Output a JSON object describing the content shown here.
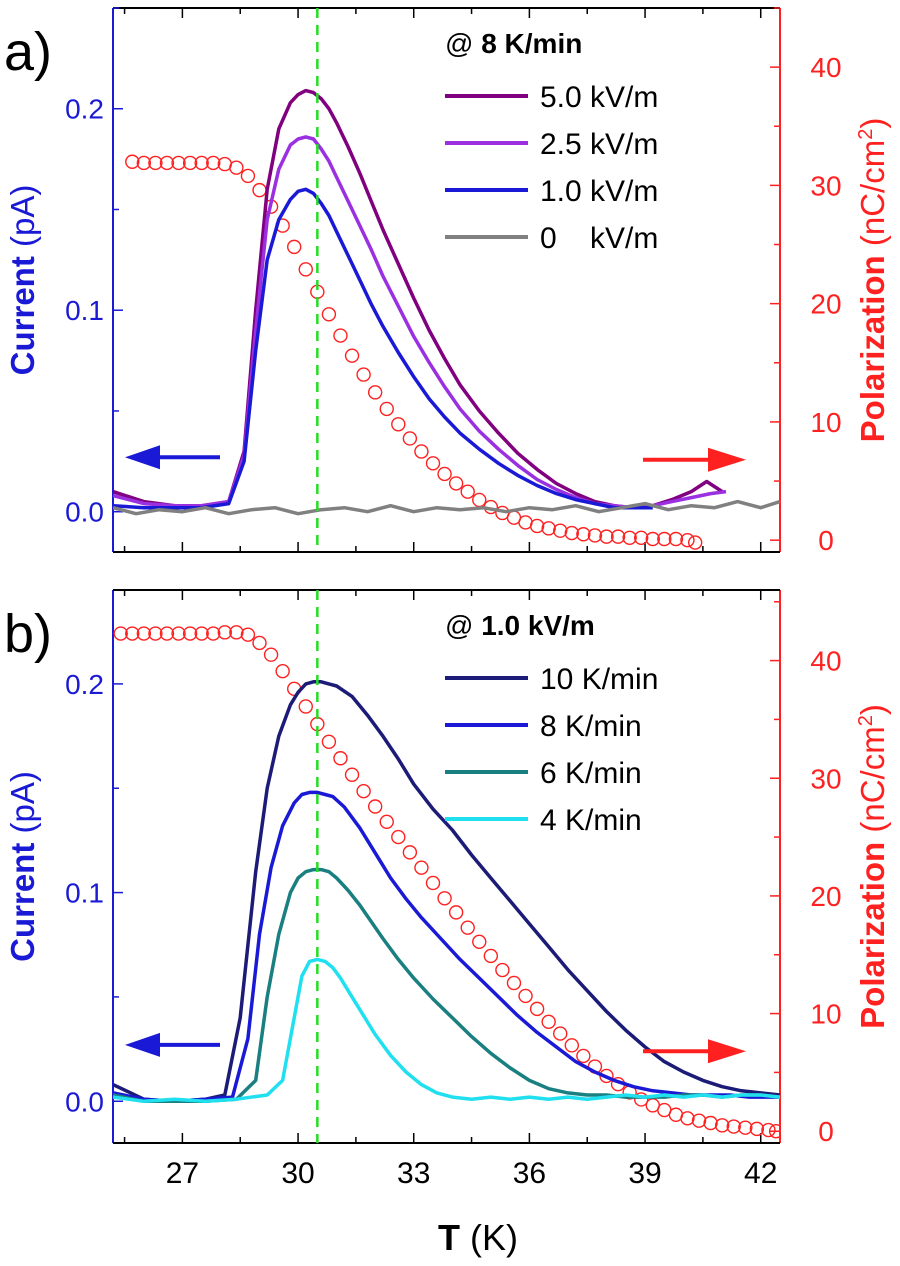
{
  "figure": {
    "xlabel_bold": "T",
    "xlabel_rest": " (K)"
  },
  "chart_data": [
    {
      "type": "line",
      "panel_label": "a)",
      "xlabel": "T (K)",
      "xticks": [
        27,
        30,
        33,
        36,
        39,
        42
      ],
      "xlim": [
        25.2,
        42.5
      ],
      "ylabel_left": {
        "bold": "Current",
        "rest": " (pA)"
      },
      "ylabel_right": {
        "bold": "Polarization",
        "rest": " (nC/cm",
        "sup": "2",
        "close": ")"
      },
      "ylim_left": [
        -0.02,
        0.25
      ],
      "yticks_left": [
        0.0,
        0.1,
        0.2
      ],
      "ytick_labels_left": [
        "0.0",
        "0.1",
        "0.2"
      ],
      "ylim_right": [
        -1,
        45
      ],
      "yticks_right": [
        0,
        10,
        20,
        30,
        40
      ],
      "ytick_labels_right": [
        "0",
        "10",
        "20",
        "30",
        "40"
      ],
      "legend_title": {
        "prefix": "@ ",
        "bold": "8 K/min"
      },
      "legend_position": "top-right",
      "vline_x": 30.5,
      "arrow_left_y": 0.027,
      "arrow_right_y": 6.8,
      "series": [
        {
          "name": "5.0 kV/m",
          "color": "#800080",
          "axis": "left",
          "x": [
            25.2,
            26.0,
            26.8,
            27.5,
            28.2,
            28.6,
            28.9,
            29.2,
            29.5,
            29.8,
            30.0,
            30.2,
            30.4,
            30.6,
            30.8,
            31.0,
            31.3,
            31.6,
            31.9,
            32.2,
            32.6,
            33.0,
            33.4,
            33.8,
            34.2,
            34.7,
            35.2,
            35.7,
            36.2,
            36.7,
            37.2,
            37.7,
            38.2,
            38.7,
            39.2,
            39.7,
            40.2,
            40.6,
            41.0
          ],
          "y": [
            0.01,
            0.005,
            0.003,
            0.003,
            0.005,
            0.03,
            0.1,
            0.16,
            0.19,
            0.203,
            0.207,
            0.209,
            0.208,
            0.205,
            0.2,
            0.193,
            0.181,
            0.168,
            0.154,
            0.14,
            0.123,
            0.106,
            0.09,
            0.076,
            0.063,
            0.05,
            0.039,
            0.029,
            0.021,
            0.014,
            0.009,
            0.005,
            0.003,
            0.002,
            0.003,
            0.006,
            0.01,
            0.015,
            0.01
          ]
        },
        {
          "name": "2.5 kV/m",
          "color": "#9a30e0",
          "axis": "left",
          "x": [
            25.2,
            26.0,
            26.8,
            27.5,
            28.2,
            28.6,
            28.9,
            29.2,
            29.5,
            29.8,
            30.0,
            30.2,
            30.4,
            30.6,
            30.8,
            31.0,
            31.3,
            31.6,
            31.9,
            32.2,
            32.6,
            33.0,
            33.4,
            33.8,
            34.2,
            34.7,
            35.2,
            35.7,
            36.2,
            36.7,
            37.2,
            37.7,
            38.2,
            38.7,
            39.2,
            39.7,
            40.2,
            40.7,
            41.1
          ],
          "y": [
            0.008,
            0.004,
            0.003,
            0.003,
            0.005,
            0.028,
            0.09,
            0.145,
            0.17,
            0.182,
            0.185,
            0.186,
            0.185,
            0.18,
            0.174,
            0.166,
            0.154,
            0.142,
            0.13,
            0.117,
            0.102,
            0.087,
            0.074,
            0.062,
            0.051,
            0.04,
            0.031,
            0.023,
            0.016,
            0.011,
            0.007,
            0.004,
            0.003,
            0.002,
            0.003,
            0.005,
            0.007,
            0.009,
            0.01
          ]
        },
        {
          "name": "1.0 kV/m",
          "color": "#1a1ad6",
          "axis": "left",
          "x": [
            25.2,
            26.0,
            26.8,
            27.5,
            28.2,
            28.6,
            28.9,
            29.2,
            29.5,
            29.8,
            30.0,
            30.2,
            30.4,
            30.6,
            30.8,
            31.0,
            31.3,
            31.6,
            31.9,
            32.2,
            32.6,
            33.0,
            33.4,
            33.8,
            34.2,
            34.7,
            35.2,
            35.7,
            36.2,
            36.7,
            37.2,
            37.7,
            38.2,
            38.7,
            39.2
          ],
          "y": [
            0.003,
            0.002,
            0.002,
            0.002,
            0.004,
            0.025,
            0.08,
            0.125,
            0.145,
            0.155,
            0.159,
            0.16,
            0.158,
            0.153,
            0.147,
            0.139,
            0.127,
            0.115,
            0.103,
            0.092,
            0.079,
            0.067,
            0.056,
            0.047,
            0.039,
            0.031,
            0.024,
            0.018,
            0.013,
            0.009,
            0.006,
            0.004,
            0.002,
            0.002,
            0.002
          ]
        },
        {
          "name": "0    kV/m",
          "color": "#808080",
          "axis": "left",
          "x": [
            25.2,
            25.8,
            26.4,
            27.0,
            27.6,
            28.2,
            28.8,
            29.4,
            30.0,
            30.6,
            31.2,
            31.8,
            32.4,
            33.0,
            33.6,
            34.2,
            34.8,
            35.4,
            36.0,
            36.6,
            37.2,
            37.8,
            38.4,
            39.0,
            39.6,
            40.2,
            40.8,
            41.4,
            42.0,
            42.5
          ],
          "y": [
            0.002,
            -0.001,
            0.001,
            0.0,
            0.002,
            -0.001,
            0.001,
            0.002,
            -0.001,
            0.001,
            0.002,
            0.0,
            0.003,
            0.0,
            0.002,
            0.001,
            0.002,
            0.0,
            0.002,
            0.001,
            0.003,
            0.0,
            0.002,
            0.004,
            0.001,
            0.003,
            0.002,
            0.005,
            0.002,
            0.005
          ]
        },
        {
          "name": "",
          "color": "#ff2020",
          "axis": "right",
          "marker": "circle",
          "x": [
            25.7,
            26.0,
            26.3,
            26.6,
            26.9,
            27.2,
            27.5,
            27.8,
            28.1,
            28.4,
            28.7,
            29.0,
            29.3,
            29.6,
            29.9,
            30.2,
            30.5,
            30.8,
            31.1,
            31.4,
            31.7,
            32.0,
            32.3,
            32.6,
            32.9,
            33.2,
            33.5,
            33.8,
            34.1,
            34.4,
            34.7,
            35.0,
            35.3,
            35.6,
            35.9,
            36.2,
            36.5,
            36.8,
            37.1,
            37.4,
            37.7,
            38.0,
            38.3,
            38.6,
            38.9,
            39.2,
            39.5,
            39.8,
            40.1,
            40.3
          ],
          "y": [
            32,
            31.9,
            31.9,
            31.9,
            31.9,
            31.9,
            31.9,
            31.9,
            31.8,
            31.5,
            30.8,
            29.6,
            28.2,
            26.6,
            24.8,
            22.9,
            21.0,
            19.1,
            17.3,
            15.6,
            14.0,
            12.5,
            11.1,
            9.8,
            8.6,
            7.5,
            6.5,
            5.6,
            4.8,
            4.1,
            3.4,
            2.8,
            2.3,
            1.9,
            1.5,
            1.2,
            1.0,
            0.8,
            0.6,
            0.5,
            0.4,
            0.3,
            0.3,
            0.2,
            0.2,
            0.1,
            0.1,
            0.1,
            0.0,
            -0.2
          ]
        }
      ]
    },
    {
      "type": "line",
      "panel_label": "b)",
      "xlabel": "T (K)",
      "xticks": [
        27,
        30,
        33,
        36,
        39,
        42
      ],
      "xlim": [
        25.2,
        42.5
      ],
      "ylabel_left": {
        "bold": "Current",
        "rest": " (pA)"
      },
      "ylabel_right": {
        "bold": "Polarization",
        "rest": " (nC/cm",
        "sup": "2",
        "close": ")"
      },
      "ylim_left": [
        -0.02,
        0.245
      ],
      "yticks_left": [
        0.0,
        0.1,
        0.2
      ],
      "ytick_labels_left": [
        "0.0",
        "0.1",
        "0.2"
      ],
      "ylim_right": [
        -1,
        46
      ],
      "yticks_right": [
        0,
        10,
        20,
        30,
        40
      ],
      "ytick_labels_right": [
        "0",
        "10",
        "20",
        "30",
        "40"
      ],
      "legend_title": {
        "prefix": "@ ",
        "bold": "1.0 kV/m"
      },
      "legend_position": "top-right",
      "vline_x": 30.5,
      "arrow_left_y": 0.027,
      "arrow_right_y": 6.8,
      "series": [
        {
          "name": "10 K/min",
          "color": "#1c1c78",
          "axis": "left",
          "x": [
            25.2,
            26.0,
            26.8,
            27.6,
            28.1,
            28.5,
            28.9,
            29.2,
            29.5,
            29.8,
            30.0,
            30.2,
            30.4,
            30.6,
            30.8,
            31.0,
            31.4,
            31.8,
            32.2,
            32.6,
            33.0,
            33.5,
            34.0,
            34.5,
            35.0,
            35.5,
            36.0,
            36.5,
            37.0,
            37.5,
            38.0,
            38.5,
            39.0,
            39.5,
            40.0,
            40.5,
            41.0,
            41.5,
            42.0,
            42.5
          ],
          "y": [
            0.008,
            0.001,
            0.0,
            0.001,
            0.003,
            0.04,
            0.11,
            0.15,
            0.175,
            0.19,
            0.196,
            0.2,
            0.201,
            0.201,
            0.2,
            0.199,
            0.194,
            0.185,
            0.175,
            0.164,
            0.152,
            0.14,
            0.13,
            0.118,
            0.107,
            0.096,
            0.085,
            0.074,
            0.063,
            0.053,
            0.043,
            0.034,
            0.026,
            0.019,
            0.014,
            0.01,
            0.007,
            0.005,
            0.004,
            0.003
          ]
        },
        {
          "name": "8 K/min",
          "color": "#1a1ad6",
          "axis": "left",
          "x": [
            25.2,
            26.0,
            26.8,
            27.6,
            28.3,
            28.7,
            29.0,
            29.3,
            29.6,
            29.9,
            30.1,
            30.3,
            30.5,
            30.7,
            30.9,
            31.2,
            31.6,
            32.0,
            32.4,
            32.8,
            33.2,
            33.7,
            34.2,
            34.7,
            35.2,
            35.7,
            36.2,
            36.7,
            37.2,
            37.7,
            38.2,
            38.7,
            39.2,
            39.7,
            40.2,
            40.7,
            41.2,
            41.7,
            42.2,
            42.5
          ],
          "y": [
            0.004,
            0.001,
            0.0,
            0.001,
            0.002,
            0.03,
            0.08,
            0.112,
            0.132,
            0.143,
            0.147,
            0.148,
            0.148,
            0.147,
            0.146,
            0.141,
            0.131,
            0.119,
            0.107,
            0.097,
            0.088,
            0.078,
            0.068,
            0.059,
            0.05,
            0.041,
            0.033,
            0.026,
            0.019,
            0.014,
            0.01,
            0.007,
            0.005,
            0.004,
            0.003,
            0.003,
            0.003,
            0.002,
            0.002,
            0.002
          ]
        },
        {
          "name": "6 K/min",
          "color": "#1a7f80",
          "axis": "left",
          "x": [
            25.2,
            26.0,
            26.8,
            27.6,
            28.4,
            28.9,
            29.2,
            29.5,
            29.8,
            30.0,
            30.2,
            30.4,
            30.6,
            30.8,
            31.0,
            31.3,
            31.6,
            31.9,
            32.2,
            32.6,
            33.0,
            33.5,
            34.0,
            34.5,
            35.0,
            35.5,
            36.0,
            36.5,
            37.0,
            37.5,
            38.0,
            38.5,
            39.0,
            39.5,
            40.0,
            40.5,
            41.0,
            41.5,
            42.0,
            42.5
          ],
          "y": [
            0.003,
            0.0,
            0.0,
            0.0,
            0.001,
            0.01,
            0.05,
            0.08,
            0.1,
            0.107,
            0.11,
            0.111,
            0.111,
            0.11,
            0.107,
            0.101,
            0.094,
            0.086,
            0.078,
            0.068,
            0.059,
            0.049,
            0.04,
            0.031,
            0.023,
            0.016,
            0.01,
            0.006,
            0.004,
            0.003,
            0.003,
            0.002,
            0.002,
            0.002,
            0.003,
            0.003,
            0.002,
            0.003,
            0.003,
            0.002
          ]
        },
        {
          "name": "4 K/min",
          "color": "#20e0f0",
          "axis": "left",
          "x": [
            25.2,
            26.0,
            26.8,
            27.6,
            28.4,
            29.2,
            29.6,
            29.9,
            30.1,
            30.3,
            30.5,
            30.7,
            30.9,
            31.1,
            31.4,
            31.7,
            32.0,
            32.4,
            32.8,
            33.2,
            33.6,
            34.0,
            34.5,
            35.0,
            35.5,
            36.0,
            36.5,
            37.0,
            37.5,
            38.0,
            38.5,
            39.0,
            39.5,
            40.0,
            40.5,
            41.0,
            41.5,
            42.0,
            42.5
          ],
          "y": [
            0.002,
            0.0,
            0.001,
            0.0,
            0.001,
            0.003,
            0.01,
            0.04,
            0.06,
            0.067,
            0.068,
            0.067,
            0.064,
            0.059,
            0.05,
            0.041,
            0.032,
            0.022,
            0.014,
            0.008,
            0.004,
            0.002,
            0.001,
            0.002,
            0.001,
            0.002,
            0.001,
            0.002,
            0.001,
            0.002,
            0.003,
            0.002,
            0.003,
            0.002,
            0.003,
            0.002,
            0.003,
            0.003,
            0.002
          ]
        },
        {
          "name": "",
          "color": "#ff2020",
          "axis": "right",
          "marker": "circle",
          "x": [
            25.4,
            25.7,
            26.0,
            26.3,
            26.6,
            26.9,
            27.2,
            27.5,
            27.8,
            28.1,
            28.4,
            28.7,
            29.0,
            29.3,
            29.6,
            29.9,
            30.2,
            30.5,
            30.8,
            31.1,
            31.4,
            31.7,
            32.0,
            32.3,
            32.6,
            32.9,
            33.2,
            33.5,
            33.8,
            34.1,
            34.4,
            34.7,
            35.0,
            35.3,
            35.6,
            35.9,
            36.2,
            36.5,
            36.8,
            37.1,
            37.4,
            37.7,
            38.0,
            38.3,
            38.6,
            38.9,
            39.2,
            39.5,
            39.8,
            40.1,
            40.4,
            40.7,
            41.0,
            41.3,
            41.6,
            41.9,
            42.2,
            42.4
          ],
          "y": [
            42.3,
            42.3,
            42.3,
            42.3,
            42.3,
            42.3,
            42.3,
            42.3,
            42.3,
            42.4,
            42.4,
            42.2,
            41.5,
            40.5,
            39.1,
            37.6,
            36.1,
            34.6,
            33.1,
            31.7,
            30.3,
            28.9,
            27.6,
            26.3,
            25.0,
            23.7,
            22.4,
            21.1,
            19.8,
            18.6,
            17.3,
            16.1,
            14.9,
            13.7,
            12.6,
            11.5,
            10.4,
            9.3,
            8.3,
            7.3,
            6.4,
            5.5,
            4.7,
            4.0,
            3.3,
            2.7,
            2.2,
            1.8,
            1.4,
            1.1,
            0.9,
            0.7,
            0.5,
            0.4,
            0.3,
            0.2,
            0.1,
            0.0
          ]
        }
      ]
    }
  ]
}
